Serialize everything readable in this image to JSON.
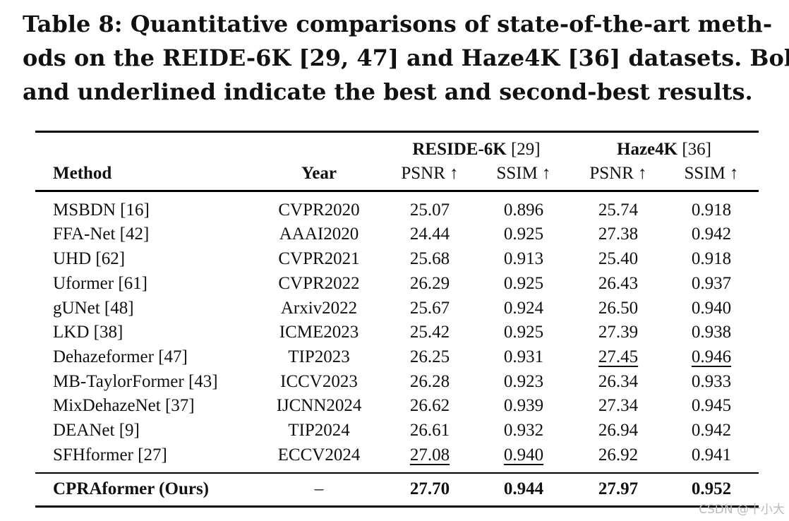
{
  "caption": {
    "line1": "Table 8: Quantitative comparisons of state-of-the-art meth-",
    "line2": "ods on the REIDE-6K [29, 47] and Haze4K [36] datasets. Bold",
    "line3": "and underlined indicate the best and second-best results."
  },
  "header": {
    "group1_name": "RESIDE-6K",
    "group1_ref": "[29]",
    "group2_name": "Haze4K",
    "group2_ref": "[36]",
    "method": "Method",
    "year": "Year",
    "psnr1": "PSNR ↑",
    "ssim1": "SSIM ↑",
    "psnr2": "PSNR ↑",
    "ssim2": "SSIM ↑"
  },
  "rows": [
    {
      "method": "MSBDN [16]",
      "year": "CVPR2020",
      "r_psnr": "25.07",
      "r_ssim": "0.896",
      "h_psnr": "25.74",
      "h_ssim": "0.918"
    },
    {
      "method": "FFA-Net [42]",
      "year": "AAAI2020",
      "r_psnr": "24.44",
      "r_ssim": "0.925",
      "h_psnr": "27.38",
      "h_ssim": "0.942"
    },
    {
      "method": "UHD [62]",
      "year": "CVPR2021",
      "r_psnr": "25.68",
      "r_ssim": "0.913",
      "h_psnr": "25.40",
      "h_ssim": "0.918"
    },
    {
      "method": "Uformer [61]",
      "year": "CVPR2022",
      "r_psnr": "26.29",
      "r_ssim": "0.925",
      "h_psnr": "26.43",
      "h_ssim": "0.937"
    },
    {
      "method": "gUNet [48]",
      "year": "Arxiv2022",
      "r_psnr": "25.67",
      "r_ssim": "0.924",
      "h_psnr": "26.50",
      "h_ssim": "0.940"
    },
    {
      "method": "LKD [38]",
      "year": "ICME2023",
      "r_psnr": "25.42",
      "r_ssim": "0.925",
      "h_psnr": "27.39",
      "h_ssim": "0.938"
    },
    {
      "method": "Dehazeformer [47]",
      "year": "TIP2023",
      "r_psnr": "26.25",
      "r_ssim": "0.931",
      "h_psnr": "27.45",
      "h_ssim": "0.946"
    },
    {
      "method": "MB-TaylorFormer [43]",
      "year": "ICCV2023",
      "r_psnr": "26.28",
      "r_ssim": "0.923",
      "h_psnr": "26.34",
      "h_ssim": "0.933"
    },
    {
      "method": "MixDehazeNet [37]",
      "year": "IJCNN2024",
      "r_psnr": "26.62",
      "r_ssim": "0.939",
      "h_psnr": "27.34",
      "h_ssim": "0.945"
    },
    {
      "method": "DEANet [9]",
      "year": "TIP2024",
      "r_psnr": "26.61",
      "r_ssim": "0.932",
      "h_psnr": "26.94",
      "h_ssim": "0.942"
    },
    {
      "method": "SFHformer [27]",
      "year": "ECCV2024",
      "r_psnr": "27.08",
      "r_ssim": "0.940",
      "h_psnr": "26.92",
      "h_ssim": "0.941"
    }
  ],
  "ours": {
    "method": "CPRAformer (Ours)",
    "year": "–",
    "r_psnr": "27.70",
    "r_ssim": "0.944",
    "h_psnr": "27.97",
    "h_ssim": "0.952"
  },
  "watermark": "CSDN @十小大"
}
